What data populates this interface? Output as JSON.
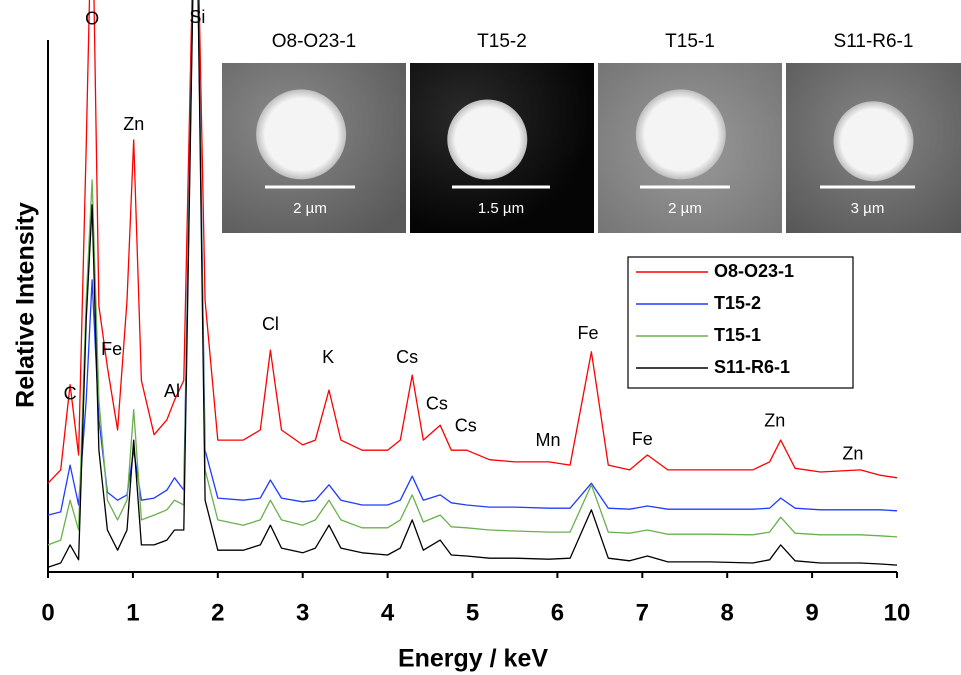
{
  "chart_data": {
    "type": "line",
    "xlabel": "Energy / keV",
    "ylabel": "Relative Intensity",
    "x": [
      0.0,
      0.15,
      0.26,
      0.36,
      0.45,
      0.52,
      0.6,
      0.7,
      0.82,
      0.93,
      1.01,
      1.1,
      1.25,
      1.4,
      1.49,
      1.6,
      1.74,
      1.85,
      2.0,
      2.3,
      2.5,
      2.62,
      2.75,
      3.0,
      3.15,
      3.31,
      3.45,
      3.7,
      4.0,
      4.15,
      4.29,
      4.42,
      4.62,
      4.75,
      4.93,
      5.2,
      5.5,
      5.9,
      6.15,
      6.4,
      6.6,
      6.85,
      7.06,
      7.3,
      7.8,
      8.3,
      8.5,
      8.63,
      8.8,
      9.1,
      9.57,
      9.8,
      10.0
    ],
    "series": [
      {
        "name": "O8-O23-1",
        "color": "#ff0000",
        "values": [
          16.7,
          19.2,
          35.2,
          22,
          80,
          130,
          50,
          38.5,
          26.7,
          51,
          81.2,
          36,
          25.8,
          28.6,
          32.3,
          36,
          140,
          51,
          24.8,
          24.8,
          26.7,
          41.7,
          26.7,
          23.9,
          24.8,
          34.2,
          24.8,
          22.9,
          22.9,
          24.8,
          37,
          24.8,
          27.6,
          22.9,
          22.9,
          21.1,
          20.7,
          20.7,
          20.1,
          41.4,
          20.1,
          19.2,
          22,
          19.2,
          19.2,
          19.2,
          20.7,
          24.8,
          19.5,
          18.8,
          19.2,
          18.2,
          17.7
        ]
      },
      {
        "name": "T15-2",
        "color": "#1f3cff",
        "values": [
          10.7,
          11.3,
          20.1,
          12.6,
          32.3,
          54.9,
          28.6,
          15,
          13.5,
          14.5,
          22.9,
          13.5,
          13.9,
          15.4,
          17.7,
          15.4,
          140,
          22.9,
          13.9,
          13.5,
          13.9,
          17.3,
          13.9,
          13.2,
          13.5,
          16.4,
          13.5,
          12.6,
          12.6,
          13.5,
          18,
          13.5,
          14.5,
          13,
          12.6,
          12.2,
          12.2,
          12,
          12,
          16.7,
          12,
          11.8,
          12.4,
          11.8,
          11.8,
          11.8,
          12,
          13.9,
          12,
          11.7,
          11.7,
          11.7,
          11.5
        ]
      },
      {
        "name": "T15-1",
        "color": "#6ab04c",
        "values": [
          5.1,
          6,
          13.5,
          7.9,
          51.1,
          73.7,
          32.3,
          13.5,
          9.8,
          13.5,
          30.5,
          9.8,
          10.7,
          11.7,
          13.5,
          12.6,
          140,
          19.2,
          9.8,
          8.8,
          9.8,
          13.5,
          9.8,
          8.8,
          9.8,
          13.5,
          9.8,
          8.3,
          8.3,
          9.8,
          14.5,
          9.4,
          10.7,
          8.5,
          8.3,
          7.9,
          7.7,
          7.5,
          7.5,
          16.4,
          7.5,
          7.3,
          7.9,
          7.1,
          7.1,
          7,
          7.5,
          10.3,
          7.3,
          7,
          7,
          6.8,
          6.6
        ]
      },
      {
        "name": "S11-R6-1",
        "color": "#000000",
        "values": [
          0.9,
          1.7,
          5.1,
          2.3,
          47.4,
          69,
          22.9,
          7.9,
          4.1,
          7.9,
          24.8,
          5.1,
          5.1,
          6,
          7.9,
          7.9,
          140,
          13.5,
          4.1,
          4.1,
          5.1,
          8.8,
          4.5,
          3.6,
          4.5,
          8.8,
          4.5,
          3.6,
          3.2,
          4.5,
          9.8,
          4.1,
          6,
          3.2,
          3,
          2.6,
          2.6,
          2.4,
          2.6,
          11.7,
          2.6,
          2.1,
          3,
          1.9,
          1.9,
          1.7,
          2.3,
          5.1,
          2.1,
          1.7,
          1.7,
          1.5,
          1.3
        ]
      }
    ],
    "xlim": [
      0,
      10
    ],
    "xticks": [
      0,
      1,
      2,
      3,
      4,
      5,
      6,
      7,
      8,
      9,
      10
    ],
    "ylim": [
      0,
      100
    ],
    "legend": "right",
    "annotations": [
      {
        "text": "C",
        "x": 0.26,
        "y": 33.3
      },
      {
        "text": "O",
        "x": 0.52,
        "y": 103.8
      },
      {
        "text": "Fe",
        "x": 0.75,
        "y": 41.7
      },
      {
        "text": "Zn",
        "x": 1.01,
        "y": 84
      },
      {
        "text": "Al",
        "x": 1.46,
        "y": 33.8
      },
      {
        "text": "Si",
        "x": 1.76,
        "y": 104.1
      },
      {
        "text": "Cl",
        "x": 2.62,
        "y": 46.4
      },
      {
        "text": "K",
        "x": 3.3,
        "y": 40.2
      },
      {
        "text": "Cs",
        "x": 4.23,
        "y": 40.2
      },
      {
        "text": "Cs",
        "x": 4.58,
        "y": 31.4
      },
      {
        "text": "Cs",
        "x": 4.92,
        "y": 27.3
      },
      {
        "text": "Mn",
        "x": 5.89,
        "y": 24.6
      },
      {
        "text": "Fe",
        "x": 6.36,
        "y": 44.7
      },
      {
        "text": "Fe",
        "x": 7.0,
        "y": 24.8
      },
      {
        "text": "Zn",
        "x": 8.56,
        "y": 28.2
      },
      {
        "text": "Zn",
        "x": 9.48,
        "y": 22
      }
    ]
  },
  "insets": [
    {
      "title": "O8-O23-1",
      "scale_bar": "2 µm"
    },
    {
      "title": "T15-2",
      "scale_bar": "1.5 µm"
    },
    {
      "title": "T15-1",
      "scale_bar": "2 µm"
    },
    {
      "title": "S11-R6-1",
      "scale_bar": "3 µm"
    }
  ]
}
